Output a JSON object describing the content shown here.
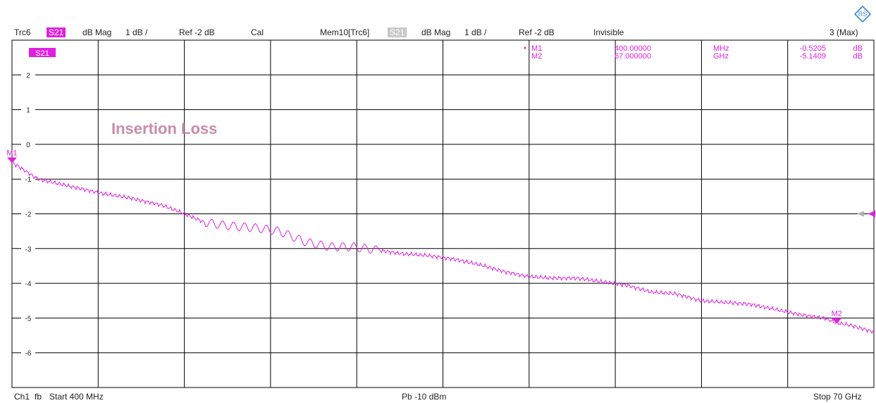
{
  "header": {
    "trace": "Trc6",
    "param": "S21",
    "format": "dB Mag",
    "scale": "1 dB /",
    "ref": "Ref -2 dB",
    "cal": "Cal",
    "mem": "Mem10[Trc6]",
    "mem_param": "S21",
    "mem_format": "dB Mag",
    "mem_scale": "1 dB /",
    "mem_ref": "Ref -2 dB",
    "mem_state": "Invisible",
    "max": "3 (Max)"
  },
  "footer": {
    "channel": "Ch1",
    "fb": "fb",
    "start": "Start  400 MHz",
    "power": "Pb  -10 dBm",
    "stop": "Stop  70 GHz"
  },
  "colors": {
    "trace": "#e020e0",
    "grid": "#000000",
    "annotation": "#c07898"
  },
  "chart_data": {
    "type": "line",
    "trace_label": "S21",
    "annotation": "Insertion Loss",
    "xlim": [
      0.4,
      70
    ],
    "ylim": [
      -7,
      3
    ],
    "yticks": [
      2,
      1,
      0,
      -1,
      -2,
      -3,
      -4,
      -5,
      -6
    ],
    "grid": true,
    "series": [
      {
        "name": "S21",
        "x": [
          0.4,
          2.5,
          5,
          7.5,
          10,
          12.5,
          14,
          16,
          18,
          20,
          22,
          24,
          26,
          28,
          30,
          32,
          34,
          36,
          38,
          40,
          42,
          44,
          46,
          48,
          50,
          52,
          54,
          56,
          58,
          60,
          62,
          64,
          66,
          67,
          68,
          70
        ],
        "y": [
          -0.52,
          -1.0,
          -1.2,
          -1.4,
          -1.55,
          -1.75,
          -1.95,
          -2.25,
          -2.35,
          -2.4,
          -2.5,
          -2.8,
          -2.95,
          -2.95,
          -3.05,
          -3.15,
          -3.2,
          -3.3,
          -3.45,
          -3.65,
          -3.8,
          -3.85,
          -3.85,
          -3.95,
          -4.05,
          -4.25,
          -4.3,
          -4.5,
          -4.55,
          -4.6,
          -4.75,
          -4.9,
          -5.0,
          -5.14,
          -5.2,
          -5.4
        ]
      }
    ],
    "markers": [
      {
        "name": "M1",
        "x": 0.4,
        "y": -0.5205,
        "freq": "400.00000",
        "freq_unit": "MHz",
        "value": "-0.5205",
        "value_unit": "dB"
      },
      {
        "name": "M2",
        "x": 67,
        "y": -5.1409,
        "freq": "67.000000",
        "freq_unit": "GHz",
        "value": "-5.1409",
        "value_unit": "dB"
      }
    ],
    "ref_level": -2
  }
}
